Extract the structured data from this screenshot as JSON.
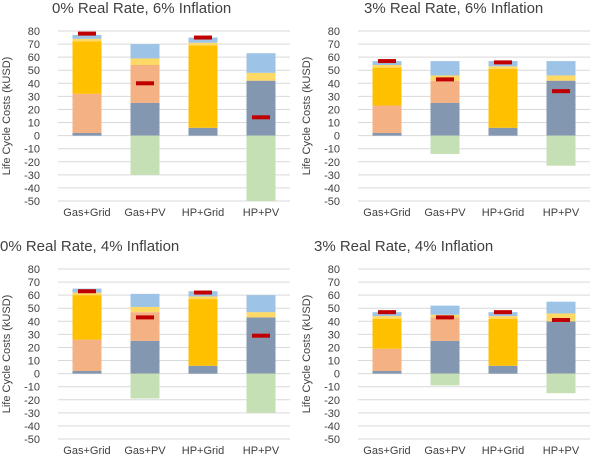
{
  "colors": {
    "base": "#8497b0",
    "orange": "#f4b183",
    "yellow": "#ffc000",
    "lightyellow": "#ffd966",
    "lightblue": "#9dc3e6",
    "green": "#c5e0b4",
    "marker": "#c00000",
    "grid": "#d9d9d9"
  },
  "chart_data": [
    {
      "type": "bar",
      "title": "0% Real Rate, 6% Inflation",
      "ylabel": "Life Cycle Costs (kUSD)",
      "ylim": [
        -50,
        80
      ],
      "yticks": [
        80,
        70,
        60,
        50,
        40,
        30,
        20,
        10,
        0,
        -10,
        -20,
        -30,
        -40,
        -50
      ],
      "categories": [
        "Gas+Grid",
        "Gas+PV",
        "HP+Grid",
        "HP+PV"
      ],
      "series": [
        {
          "color_key": "base",
          "values": [
            2,
            25,
            6,
            42
          ]
        },
        {
          "color_key": "orange",
          "values": [
            30,
            29,
            0,
            0
          ]
        },
        {
          "color_key": "yellow",
          "values": [
            40,
            0,
            63,
            0
          ]
        },
        {
          "color_key": "lightyellow",
          "values": [
            2,
            5,
            2,
            6
          ]
        },
        {
          "color_key": "lightblue",
          "values": [
            3,
            11,
            4,
            15
          ]
        },
        {
          "color_key": "green",
          "values": [
            0,
            -30,
            0,
            -50
          ]
        }
      ],
      "net_markers": [
        78,
        40,
        75,
        14
      ]
    },
    {
      "type": "bar",
      "title": "3% Real Rate, 6% Inflation",
      "ylabel": "Life Cycle Costs (kUSD)",
      "ylim": [
        -50,
        80
      ],
      "yticks": [
        80,
        70,
        60,
        50,
        40,
        30,
        20,
        10,
        0,
        -10,
        -20,
        -30,
        -40,
        -50
      ],
      "categories": [
        "Gas+Grid",
        "Gas+PV",
        "HP+Grid",
        "HP+PV"
      ],
      "series": [
        {
          "color_key": "base",
          "values": [
            2,
            25,
            6,
            42
          ]
        },
        {
          "color_key": "orange",
          "values": [
            21,
            17,
            0,
            0
          ]
        },
        {
          "color_key": "yellow",
          "values": [
            29,
            0,
            45,
            0
          ]
        },
        {
          "color_key": "lightyellow",
          "values": [
            2,
            4,
            2,
            4
          ]
        },
        {
          "color_key": "lightblue",
          "values": [
            3,
            11,
            4,
            11
          ]
        },
        {
          "color_key": "green",
          "values": [
            0,
            -14,
            0,
            -23
          ]
        }
      ],
      "net_markers": [
        57,
        43,
        56,
        34
      ]
    },
    {
      "type": "bar",
      "title": "0% Real Rate, 4% Inflation",
      "ylabel": "Life Cycle Costs (kUSD)",
      "ylim": [
        -50,
        80
      ],
      "yticks": [
        80,
        70,
        60,
        50,
        40,
        30,
        20,
        10,
        0,
        -10,
        -20,
        -30,
        -40,
        -50
      ],
      "categories": [
        "Gas+Grid",
        "Gas+PV",
        "HP+Grid",
        "HP+PV"
      ],
      "series": [
        {
          "color_key": "base",
          "values": [
            2,
            25,
            6,
            43
          ]
        },
        {
          "color_key": "orange",
          "values": [
            24,
            22,
            0,
            0
          ]
        },
        {
          "color_key": "yellow",
          "values": [
            34,
            0,
            51,
            0
          ]
        },
        {
          "color_key": "lightyellow",
          "values": [
            2,
            4,
            2,
            4
          ]
        },
        {
          "color_key": "lightblue",
          "values": [
            3,
            10,
            4,
            13
          ]
        },
        {
          "color_key": "green",
          "values": [
            0,
            -19,
            0,
            -30
          ]
        }
      ],
      "net_markers": [
        63,
        43,
        62,
        29
      ]
    },
    {
      "type": "bar",
      "title": "3% Real Rate, 4% Inflation",
      "ylabel": "Life Cycle Costs (kUSD)",
      "ylim": [
        -50,
        80
      ],
      "yticks": [
        80,
        70,
        60,
        50,
        40,
        30,
        20,
        10,
        0,
        -10,
        -20,
        -30,
        -40,
        -50
      ],
      "categories": [
        "Gas+Grid",
        "Gas+PV",
        "HP+Grid",
        "HP+PV"
      ],
      "series": [
        {
          "color_key": "base",
          "values": [
            2,
            25,
            6,
            40
          ]
        },
        {
          "color_key": "orange",
          "values": [
            17,
            18,
            0,
            0
          ]
        },
        {
          "color_key": "yellow",
          "values": [
            23,
            0,
            36,
            0
          ]
        },
        {
          "color_key": "lightyellow",
          "values": [
            2,
            2,
            2,
            6
          ]
        },
        {
          "color_key": "lightblue",
          "values": [
            3,
            7,
            3,
            9
          ]
        },
        {
          "color_key": "green",
          "values": [
            0,
            -9,
            0,
            -15
          ]
        }
      ],
      "net_markers": [
        47,
        43,
        47,
        41
      ]
    }
  ]
}
